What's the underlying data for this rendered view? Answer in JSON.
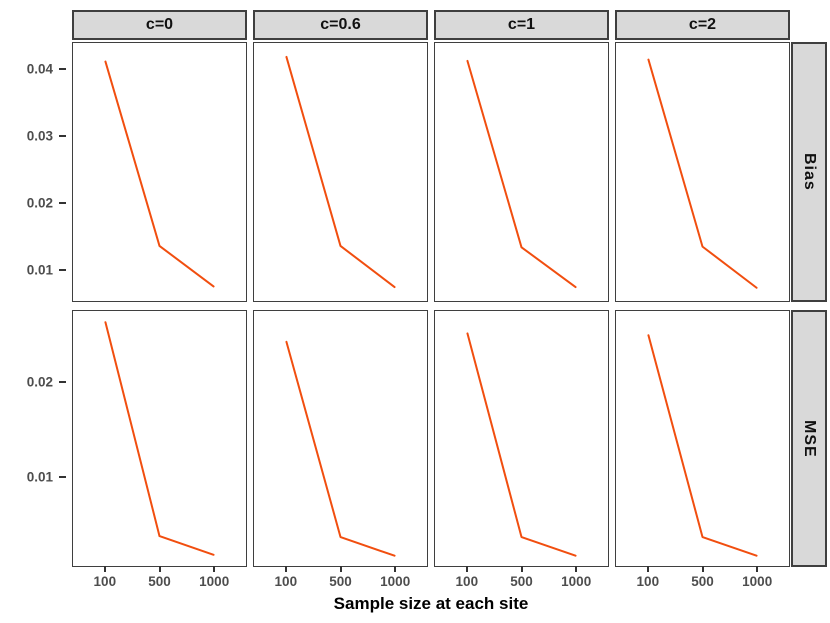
{
  "figure": {
    "background": "#FFFFFF",
    "strip_background": "#D9D9D9",
    "border_color": "#3F3F3F",
    "tick_text_color": "#4D4D4D",
    "line_color": "#F14E0F"
  },
  "chart_data": {
    "type": "line",
    "facet_grid": {
      "columns_variable": "c",
      "rows_variable": "metric"
    },
    "col_labels": [
      "c=0",
      "c=0.6",
      "c=1",
      "c=2"
    ],
    "row_labels": [
      "Bias",
      "MSE"
    ],
    "x": [
      "100",
      "500",
      "1000"
    ],
    "x_positions": [
      0.1875,
      0.5,
      0.8125
    ],
    "xlabel": "Sample size at each site",
    "ylabel": "",
    "grid": false,
    "legend": "none",
    "line_color": "#F14E0F",
    "rows": [
      {
        "label": "Bias",
        "yticks": [
          0.01,
          0.02,
          0.03,
          0.04
        ],
        "ylim": [
          0.0052,
          0.0441
        ],
        "series": [
          {
            "name": "c=0",
            "values": [
              0.0413,
              0.0135,
              0.0074
            ]
          },
          {
            "name": "c=0.6",
            "values": [
              0.042,
              0.0135,
              0.0073
            ]
          },
          {
            "name": "c=1",
            "values": [
              0.0414,
              0.0133,
              0.0073
            ]
          },
          {
            "name": "c=2",
            "values": [
              0.0416,
              0.0134,
              0.0072
            ]
          }
        ]
      },
      {
        "label": "MSE",
        "yticks": [
          0.01,
          0.02
        ],
        "ylim": [
          0.0004,
          0.0277
        ],
        "series": [
          {
            "name": "c=0",
            "values": [
              0.0265,
              0.0036,
              0.0016
            ]
          },
          {
            "name": "c=0.6",
            "values": [
              0.0244,
              0.0035,
              0.0015
            ]
          },
          {
            "name": "c=1",
            "values": [
              0.0253,
              0.0035,
              0.0015
            ]
          },
          {
            "name": "c=2",
            "values": [
              0.0251,
              0.0035,
              0.0015
            ]
          }
        ]
      }
    ]
  }
}
